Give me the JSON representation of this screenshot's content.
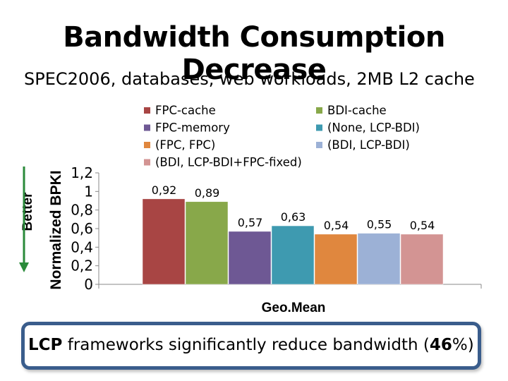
{
  "slide": {
    "title": "Bandwidth Consumption Decrease",
    "subtitle": "SPEC2006, databases, web workloads, 2MB L2 cache",
    "better_label": "Better",
    "callout": {
      "bold1": "LCP",
      "text1": " frameworks significantly reduce bandwidth (",
      "bold2": "46",
      "text2": "%)"
    }
  },
  "chart_data": {
    "type": "bar",
    "title": "",
    "xlabel": "Geo.Mean",
    "ylabel": "Normalized BPKI",
    "ylim": [
      0,
      1.2
    ],
    "yticks": [
      "1,2",
      "1",
      "0,8",
      "0,6",
      "0,4",
      "0,2",
      "0"
    ],
    "ytick_values": [
      1.2,
      1.0,
      0.8,
      0.6,
      0.4,
      0.2,
      0
    ],
    "categories": [
      "Geo.Mean"
    ],
    "legend_position": "top",
    "series": [
      {
        "name": "FPC-cache",
        "value": 0.92,
        "label": "0,92",
        "color": "#a84544"
      },
      {
        "name": "BDI-cache",
        "value": 0.89,
        "label": "0,89",
        "color": "#88a84a"
      },
      {
        "name": "FPC-memory",
        "value": 0.57,
        "label": "0,57",
        "color": "#6e5894"
      },
      {
        "name": "(None, LCP-BDI)",
        "value": 0.63,
        "label": "0,63",
        "color": "#3e9ab0"
      },
      {
        "name": "(FPC, FPC)",
        "value": 0.54,
        "label": "0,54",
        "color": "#e0873e"
      },
      {
        "name": "(BDI, LCP-BDI)",
        "value": 0.55,
        "label": "0,55",
        "color": "#9cb1d6"
      },
      {
        "name": "(BDI, LCP-BDI+FPC-fixed)",
        "value": 0.54,
        "label": "0,54",
        "color": "#d39493"
      }
    ],
    "legend_order": [
      "FPC-cache",
      "FPC-memory",
      "(FPC, FPC)",
      "(BDI, LCP-BDI+FPC-fixed)",
      "BDI-cache",
      "(None, LCP-BDI)",
      "(BDI, LCP-BDI)"
    ]
  }
}
